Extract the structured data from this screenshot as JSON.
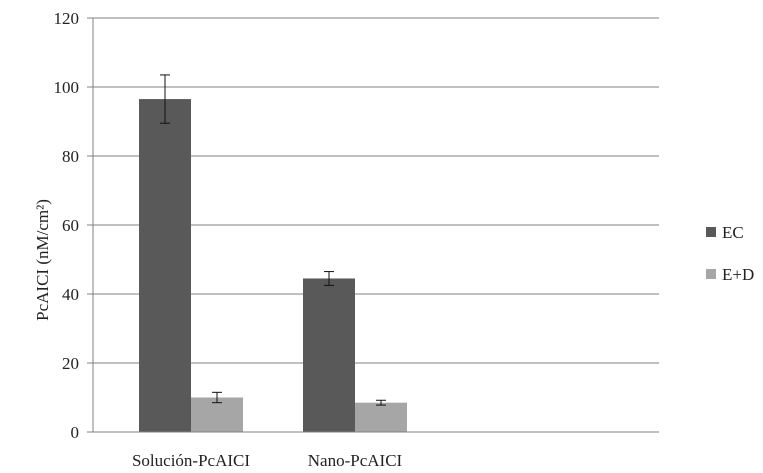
{
  "chart_data": {
    "type": "bar",
    "title": "",
    "xlabel": "",
    "ylabel": "PcAICI (nM/cm²)",
    "categories": [
      "Solución-PcAICI",
      "Nano-PcAICI"
    ],
    "series": [
      {
        "name": "EC",
        "values": [
          96.5,
          44.5
        ],
        "errors": [
          7.0,
          2.0
        ],
        "color": "#595959"
      },
      {
        "name": "E+D",
        "values": [
          10.0,
          8.5
        ],
        "errors": [
          1.5,
          0.7
        ],
        "color": "#a6a6a6"
      }
    ],
    "ylim": [
      0,
      120
    ],
    "yticks": [
      "0",
      "20",
      "40",
      "60",
      "80",
      "100",
      "120"
    ],
    "grid": true,
    "legend_position": "right"
  }
}
